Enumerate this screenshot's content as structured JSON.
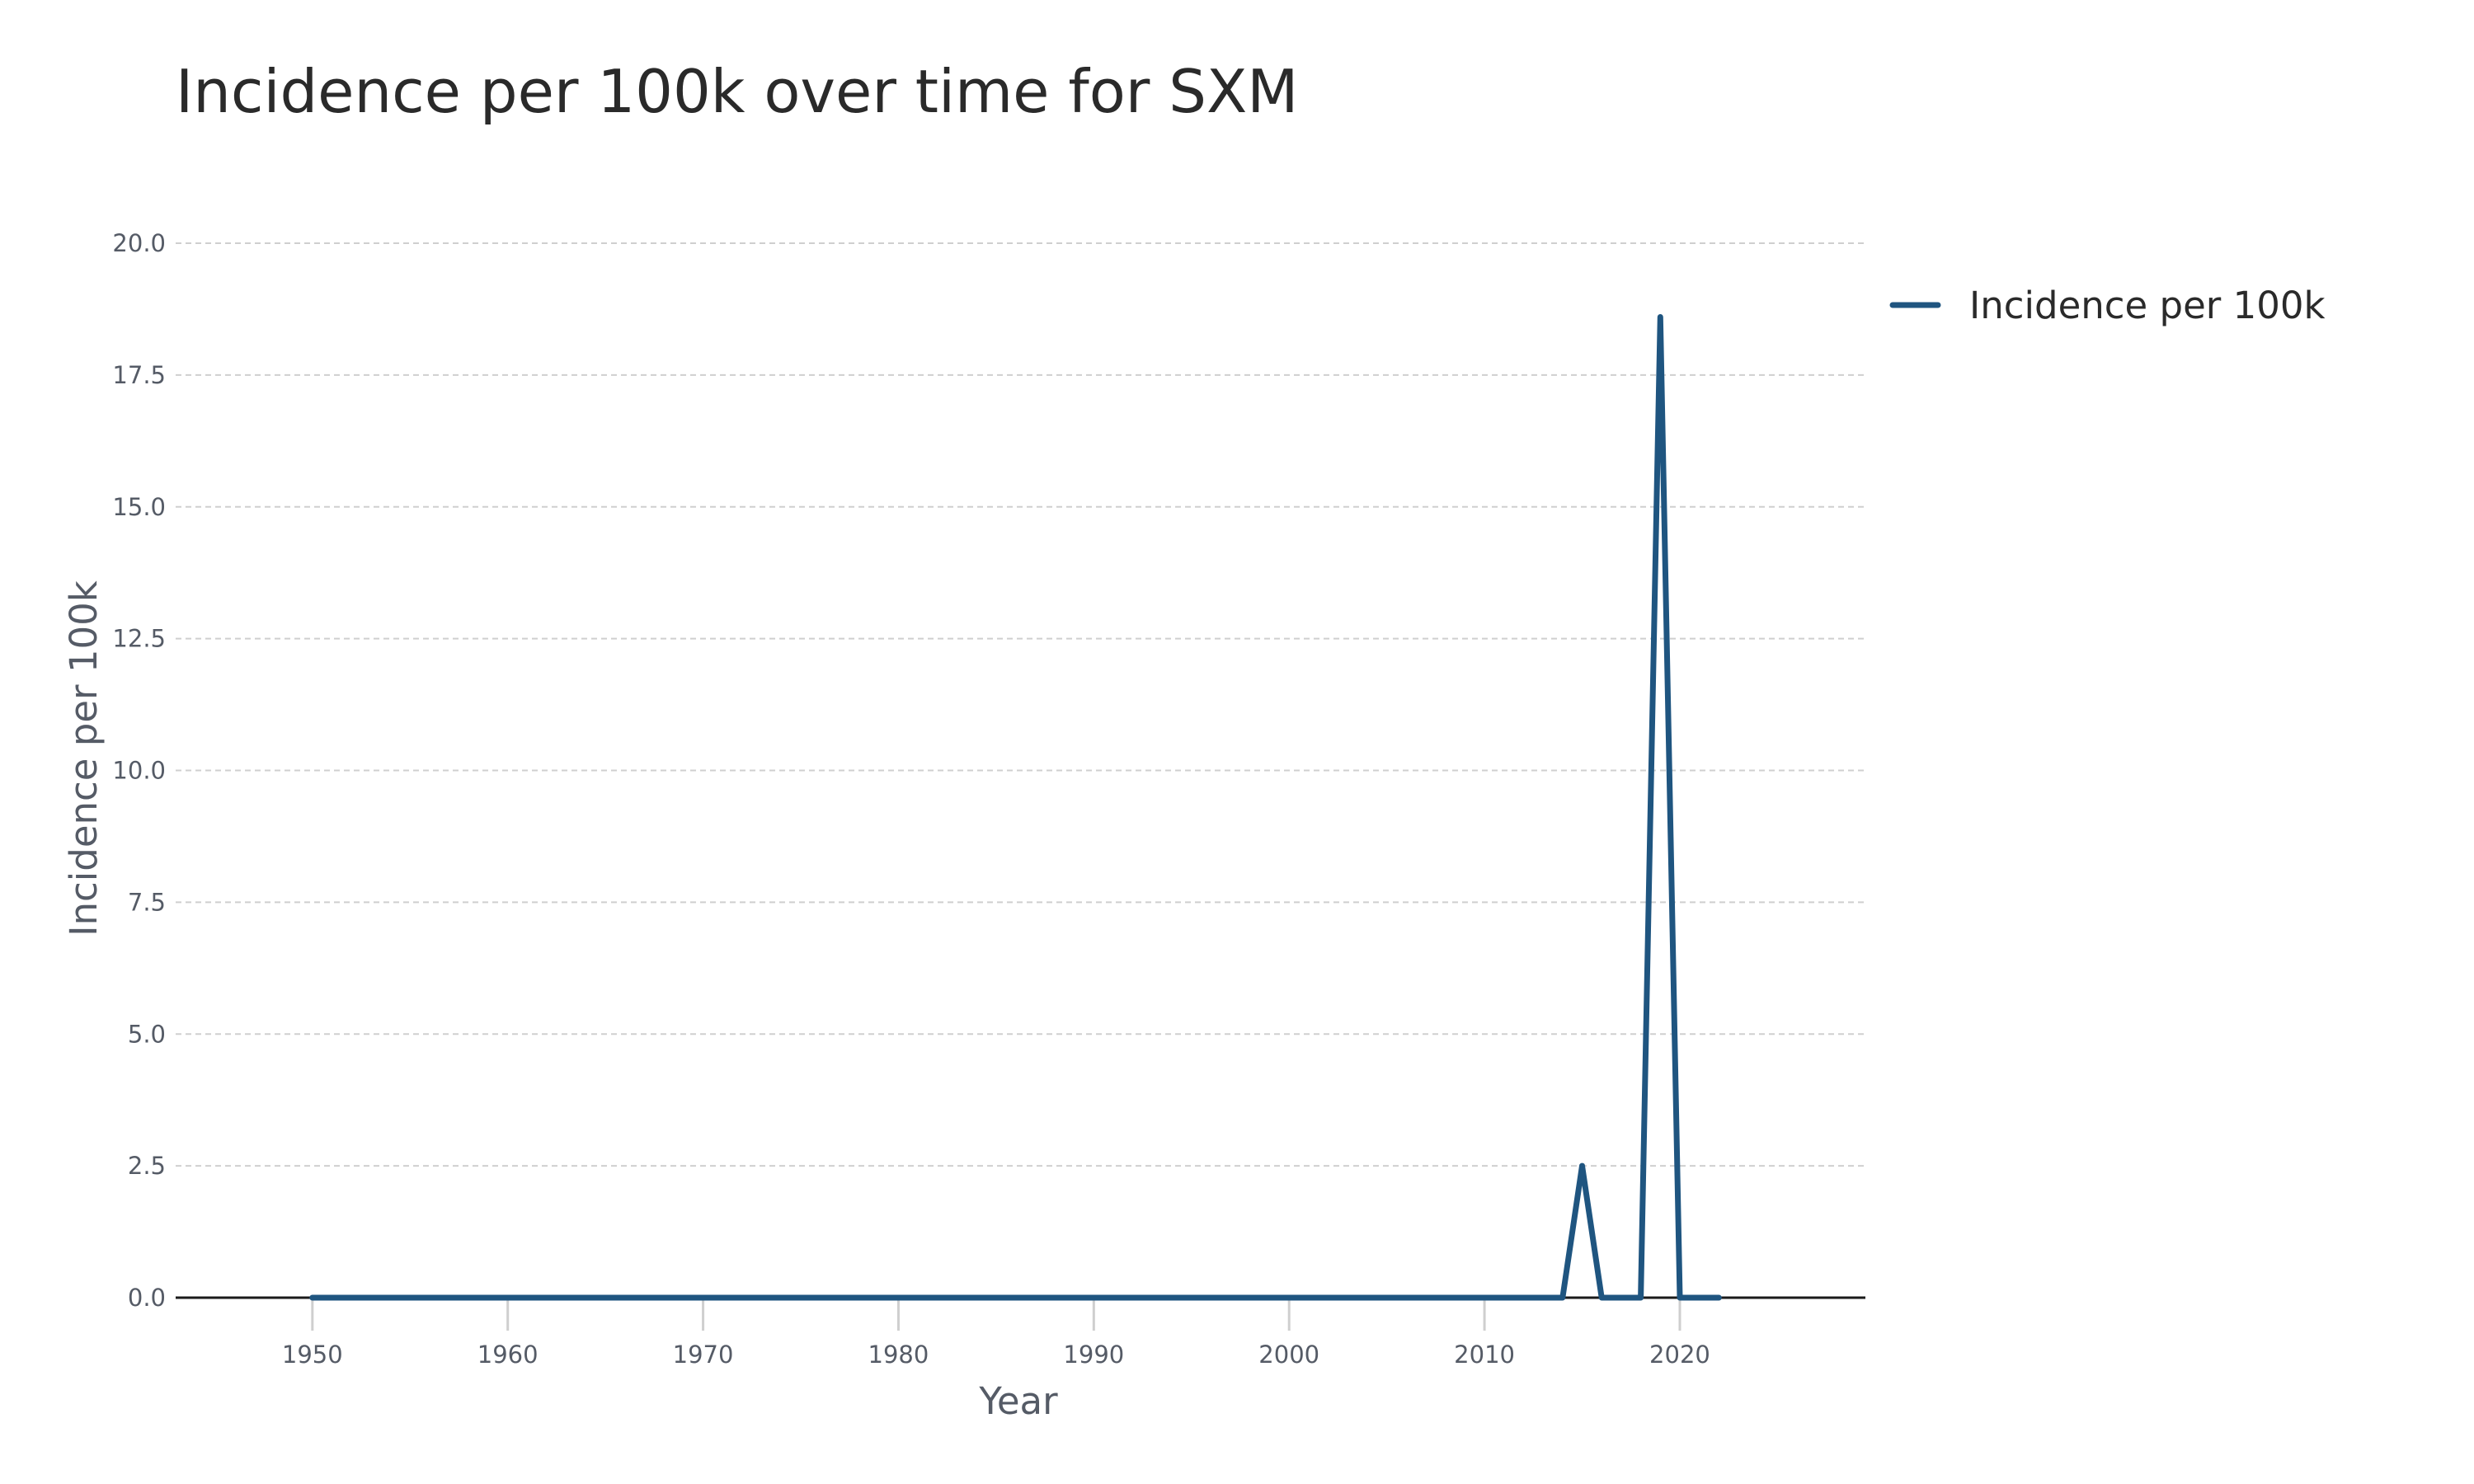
{
  "chart_data": {
    "type": "line",
    "title": "Incidence per 100k over time for SXM",
    "xlabel": "Year",
    "ylabel": "Incidence per 100k",
    "xlim": [
      1943,
      2029.5
    ],
    "ylim": [
      0,
      20.0
    ],
    "x_ticks": [
      "1950",
      "1960",
      "1970",
      "1980",
      "1990",
      "2000",
      "2010",
      "2020"
    ],
    "y_ticks": [
      "0.0",
      "2.5",
      "5.0",
      "7.5",
      "10.0",
      "12.5",
      "15.0",
      "17.5",
      "20.0"
    ],
    "grid": true,
    "legend_position": "top-right",
    "series": [
      {
        "name": "Incidence per 100k",
        "color": "#1f5580",
        "x": [
          1950,
          1951,
          1952,
          1953,
          1954,
          1955,
          1956,
          1957,
          1958,
          1959,
          1960,
          1961,
          1962,
          1963,
          1964,
          1965,
          1966,
          1967,
          1968,
          1969,
          1970,
          1971,
          1972,
          1973,
          1974,
          1975,
          1976,
          1977,
          1978,
          1979,
          1980,
          1981,
          1982,
          1983,
          1984,
          1985,
          1986,
          1987,
          1988,
          1989,
          1990,
          1991,
          1992,
          1993,
          1994,
          1995,
          1996,
          1997,
          1998,
          1999,
          2000,
          2001,
          2002,
          2003,
          2004,
          2005,
          2006,
          2007,
          2008,
          2009,
          2010,
          2011,
          2012,
          2013,
          2014,
          2015,
          2016,
          2017,
          2018,
          2019,
          2020,
          2021,
          2022
        ],
        "y": [
          0,
          0,
          0,
          0,
          0,
          0,
          0,
          0,
          0,
          0,
          0,
          0,
          0,
          0,
          0,
          0,
          0,
          0,
          0,
          0,
          0,
          0,
          0,
          0,
          0,
          0,
          0,
          0,
          0,
          0,
          0,
          0,
          0,
          0,
          0,
          0,
          0,
          0,
          0,
          0,
          0,
          0,
          0,
          0,
          0,
          0,
          0,
          0,
          0,
          0,
          0,
          0,
          0,
          0,
          0,
          0,
          0,
          0,
          0,
          0,
          0,
          0,
          0,
          0,
          0,
          2.5,
          0,
          0,
          0,
          18.6,
          0,
          0,
          0
        ]
      }
    ]
  }
}
